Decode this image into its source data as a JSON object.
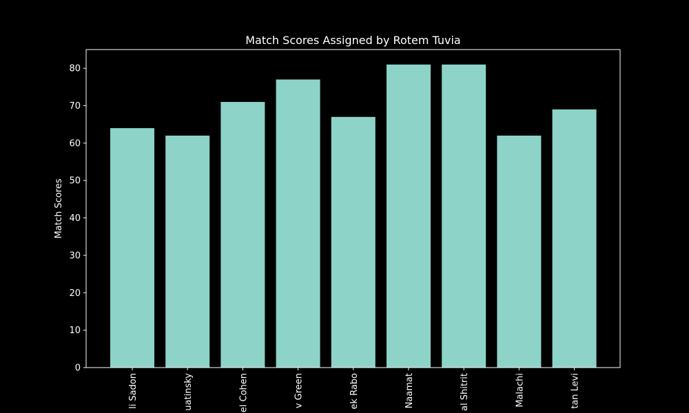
{
  "chart_data": {
    "type": "bar",
    "title": "Match Scores Assigned by Rotem Tuvia",
    "xlabel": "",
    "ylabel": "Match Scores",
    "categories": [
      "li Sadon",
      "uatinsky",
      "el Cohen",
      "v Green",
      "ek Rabo",
      "Naamat",
      "al Shitrit",
      "Malachi",
      "tan Levi"
    ],
    "values": [
      64,
      62,
      71,
      77,
      67,
      81,
      81,
      62,
      69
    ],
    "ylim": [
      0,
      85
    ],
    "yticks": [
      0,
      10,
      20,
      30,
      40,
      50,
      60,
      70,
      80
    ],
    "grid": false,
    "colors": {
      "background": "#000000",
      "bar": "#8dd3c7",
      "axis": "#ffffff",
      "text": "#ffffff"
    }
  }
}
